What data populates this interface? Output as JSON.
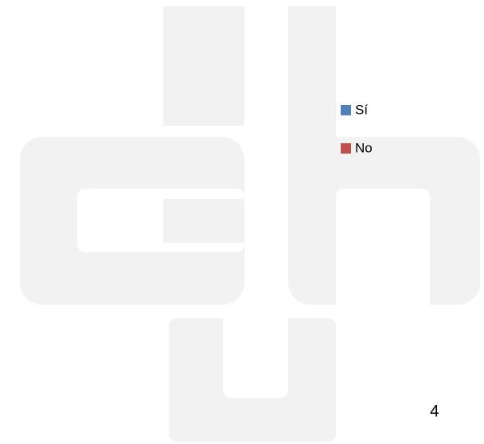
{
  "legend": [
    {
      "name": "Sí",
      "color": "#4f81bd"
    },
    {
      "name": "No",
      "color": "#c0504d"
    }
  ],
  "page_number": "4"
}
